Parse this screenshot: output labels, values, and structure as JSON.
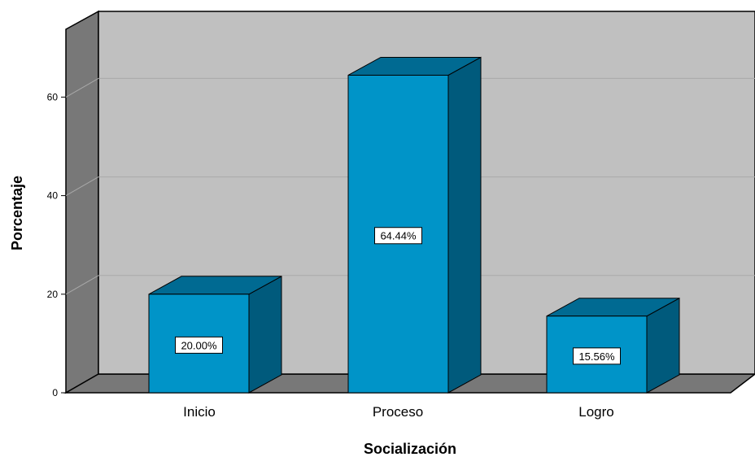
{
  "chart_data": {
    "type": "bar",
    "title": "",
    "xlabel": "Socialización",
    "ylabel": "Porcentaje",
    "categories": [
      "Inicio",
      "Proceso",
      "Logro"
    ],
    "values": [
      20.0,
      64.44,
      15.56
    ],
    "data_labels": [
      "20.00%",
      "64.44%",
      "15.56%"
    ],
    "ylim": [
      0,
      70
    ],
    "yticks": [
      0,
      20,
      40,
      60
    ],
    "grid": true,
    "three_d": true,
    "colors": {
      "bar_front": "#0094c8",
      "bar_side": "#005a7c",
      "bar_top": "#006a92",
      "plot_back": "#c0c0c0",
      "walls": "#787878",
      "gridline": "#a9a9a9"
    }
  }
}
